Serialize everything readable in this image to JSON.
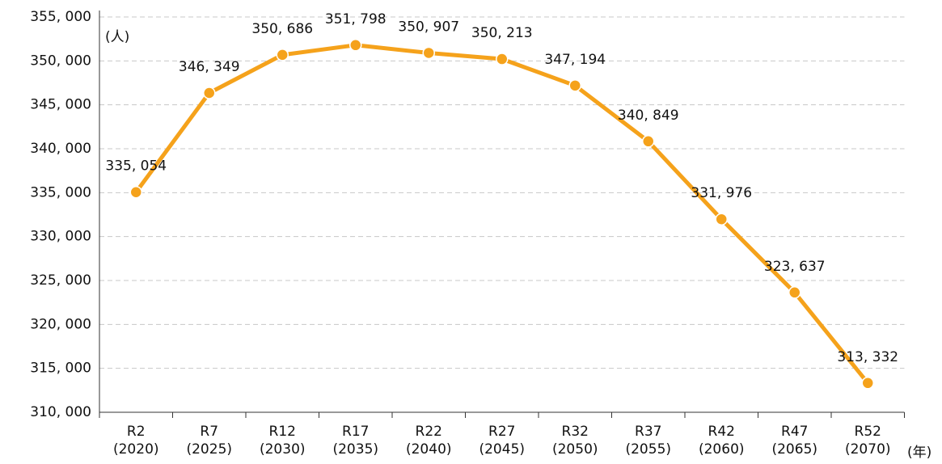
{
  "chart_data": {
    "type": "line",
    "y_unit": "(人)",
    "x_unit": "(年)",
    "categories": [
      [
        "R2",
        "(2020)"
      ],
      [
        "R7",
        "(2025)"
      ],
      [
        "R12",
        "(2030)"
      ],
      [
        "R17",
        "(2035)"
      ],
      [
        "R22",
        "(2040)"
      ],
      [
        "R27",
        "(2045)"
      ],
      [
        "R32",
        "(2050)"
      ],
      [
        "R37",
        "(2055)"
      ],
      [
        "R42",
        "(2060)"
      ],
      [
        "R47",
        "(2065)"
      ],
      [
        "R52",
        "(2070)"
      ]
    ],
    "values": [
      335054,
      346349,
      350686,
      351798,
      350907,
      350213,
      347194,
      340849,
      331976,
      323637,
      313332
    ],
    "value_labels": [
      "335, 054",
      "346, 349",
      "350, 686",
      "351, 798",
      "350, 907",
      "350, 213",
      "347, 194",
      "340, 849",
      "331, 976",
      "323, 637",
      "313, 332"
    ],
    "color": "#f5a21b",
    "ylim": [
      310000,
      355000
    ],
    "yticks": [
      {
        "value": 310000,
        "label": "310, 000"
      },
      {
        "value": 315000,
        "label": "315, 000"
      },
      {
        "value": 320000,
        "label": "320, 000"
      },
      {
        "value": 325000,
        "label": "325, 000"
      },
      {
        "value": 330000,
        "label": "330, 000"
      },
      {
        "value": 335000,
        "label": "335, 000"
      },
      {
        "value": 340000,
        "label": "340, 000"
      },
      {
        "value": 345000,
        "label": "345, 000"
      },
      {
        "value": 350000,
        "label": "350, 000"
      },
      {
        "value": 355000,
        "label": "355, 000"
      }
    ],
    "grid": true
  }
}
